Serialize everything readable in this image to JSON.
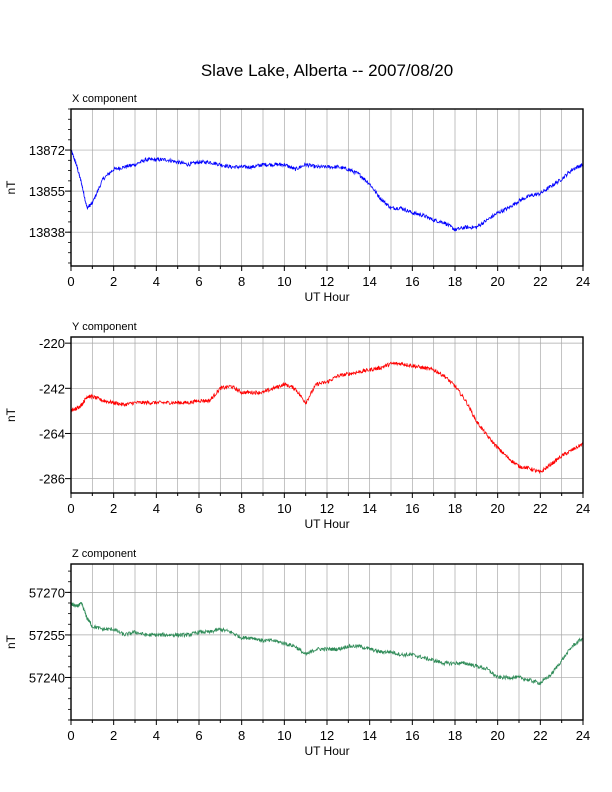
{
  "title": "Slave Lake, Alberta -- 2007/08/20",
  "chart_data": [
    {
      "type": "line",
      "subtitle": "X component",
      "xlabel": "UT Hour",
      "ylabel": "nT",
      "xlim": [
        0,
        24
      ],
      "ylim": [
        13824.0,
        13889
      ],
      "xticks": [
        0,
        2,
        4,
        6,
        8,
        10,
        12,
        14,
        16,
        18,
        20,
        22,
        24
      ],
      "yticks": [
        13838,
        13855,
        13872
      ],
      "grid": true,
      "color": "#0000ff",
      "series": [
        {
          "x": [
            0,
            0.25,
            0.5,
            0.75,
            1,
            1.5,
            2,
            2.5,
            3,
            3.5,
            4,
            4.5,
            5,
            5.5,
            6,
            6.5,
            7,
            7.5,
            8,
            8.5,
            9,
            9.5,
            10,
            10.5,
            11,
            11.5,
            12,
            12.5,
            13,
            13.5,
            14,
            14.5,
            15,
            15.5,
            16,
            16.5,
            17,
            17.5,
            18,
            18.5,
            19,
            19.5,
            20,
            20.5,
            21,
            21.5,
            22,
            22.5,
            23,
            23.5,
            24
          ],
          "values": [
            13872,
            13866,
            13858,
            13848,
            13850,
            13860,
            13864,
            13865,
            13866,
            13868,
            13868,
            13868,
            13867,
            13866,
            13867,
            13867,
            13866,
            13865,
            13865,
            13865,
            13866,
            13866,
            13866,
            13864,
            13866,
            13865,
            13865,
            13865,
            13864,
            13862,
            13858,
            13852,
            13848,
            13848,
            13846,
            13845,
            13843,
            13842,
            13839,
            13840,
            13840,
            13843,
            13846,
            13848,
            13851,
            13853,
            13854,
            13857,
            13860,
            13864,
            13866
          ]
        }
      ]
    },
    {
      "type": "line",
      "subtitle": "Y component",
      "xlabel": "UT Hour",
      "ylabel": "nT",
      "xlim": [
        0,
        24
      ],
      "ylim": [
        -293,
        -217
      ],
      "xticks": [
        0,
        2,
        4,
        6,
        8,
        10,
        12,
        14,
        16,
        18,
        20,
        22,
        24
      ],
      "yticks": [
        -220,
        -242,
        -264,
        -286
      ],
      "grid": true,
      "color": "#ff0000",
      "series": [
        {
          "x": [
            0,
            0.25,
            0.5,
            0.75,
            1,
            1.5,
            2,
            2.5,
            3,
            3.5,
            4,
            4.5,
            5,
            5.5,
            6,
            6.5,
            7,
            7.5,
            8,
            8.5,
            9,
            9.5,
            10,
            10.5,
            11,
            11.5,
            12,
            12.5,
            13,
            13.5,
            14,
            14.5,
            15,
            15.5,
            16,
            16.5,
            17,
            17.5,
            18,
            18.5,
            19,
            19.5,
            20,
            20.5,
            21,
            21.5,
            22,
            22.5,
            23,
            23.5,
            24
          ],
          "values": [
            -253,
            -252,
            -250,
            -246,
            -246,
            -248,
            -249,
            -250,
            -249,
            -249,
            -249,
            -249,
            -249,
            -249,
            -248,
            -248,
            -242,
            -241,
            -244,
            -244,
            -244,
            -242,
            -240,
            -242,
            -249,
            -240,
            -239,
            -236,
            -235,
            -234,
            -233,
            -232,
            -230,
            -230,
            -231,
            -232,
            -233,
            -236,
            -241,
            -248,
            -258,
            -265,
            -271,
            -276,
            -280,
            -281,
            -283,
            -279,
            -275,
            -272,
            -269
          ]
        }
      ]
    },
    {
      "type": "line",
      "subtitle": "Z component",
      "xlabel": "UT Hour",
      "ylabel": "nT",
      "xlim": [
        0,
        24
      ],
      "ylim": [
        57225,
        57280
      ],
      "xticks": [
        0,
        2,
        4,
        6,
        8,
        10,
        12,
        14,
        16,
        18,
        20,
        22,
        24
      ],
      "yticks": [
        57240,
        57255,
        57270
      ],
      "grid": true,
      "color": "#2e8b57",
      "series": [
        {
          "x": [
            0,
            0.25,
            0.5,
            0.75,
            1,
            1.5,
            2,
            2.5,
            3,
            3.5,
            4,
            4.5,
            5,
            5.5,
            6,
            6.5,
            7,
            7.5,
            8,
            8.5,
            9,
            9.5,
            10,
            10.5,
            11,
            11.5,
            12,
            12.5,
            13,
            13.5,
            14,
            14.5,
            15,
            15.5,
            16,
            16.5,
            17,
            17.5,
            18,
            18.5,
            19,
            19.5,
            20,
            20.5,
            21,
            21.5,
            22,
            22.5,
            23,
            23.5,
            24
          ],
          "values": [
            57266,
            57265,
            57266,
            57261,
            57258,
            57257,
            57257,
            57255,
            57256,
            57255,
            57255,
            57255,
            57255,
            57255,
            57256,
            57256,
            57257,
            57256,
            57254,
            57254,
            57253,
            57253,
            57252,
            57251,
            57248,
            57250,
            57250,
            57250,
            57251,
            57251,
            57250,
            57249,
            57249,
            57248,
            57248,
            57247,
            57246,
            57245,
            57245,
            57245,
            57244,
            57243,
            57240,
            57240,
            57240,
            57239,
            57238,
            57241,
            57246,
            57251,
            57254
          ]
        }
      ]
    }
  ]
}
